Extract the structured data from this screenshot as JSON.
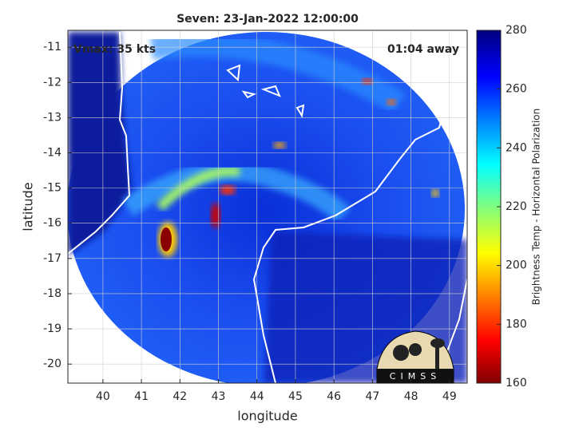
{
  "chart_data": {
    "type": "map",
    "title": "Seven: 23-Jan-2022 12:00:00",
    "xlabel": "longitude",
    "ylabel": "latitude",
    "xlim": [
      39.09,
      49.46
    ],
    "ylim": [
      -20.54,
      -10.52
    ],
    "xticks": [
      40,
      41,
      42,
      43,
      44,
      45,
      46,
      47,
      48,
      49
    ],
    "yticks": [
      -20,
      -19,
      -18,
      -17,
      -16,
      -15,
      -14,
      -13,
      -12,
      -11
    ],
    "grid": true,
    "annotations": {
      "left": "Vmax: 35 kts",
      "right": "01:04 away"
    },
    "logo": "CIMSS",
    "colorbar": {
      "label": "Brightness Temp - Horizontal Polarization",
      "lim": [
        160,
        280
      ],
      "ticks": [
        160,
        180,
        200,
        220,
        240,
        260,
        280
      ]
    }
  }
}
